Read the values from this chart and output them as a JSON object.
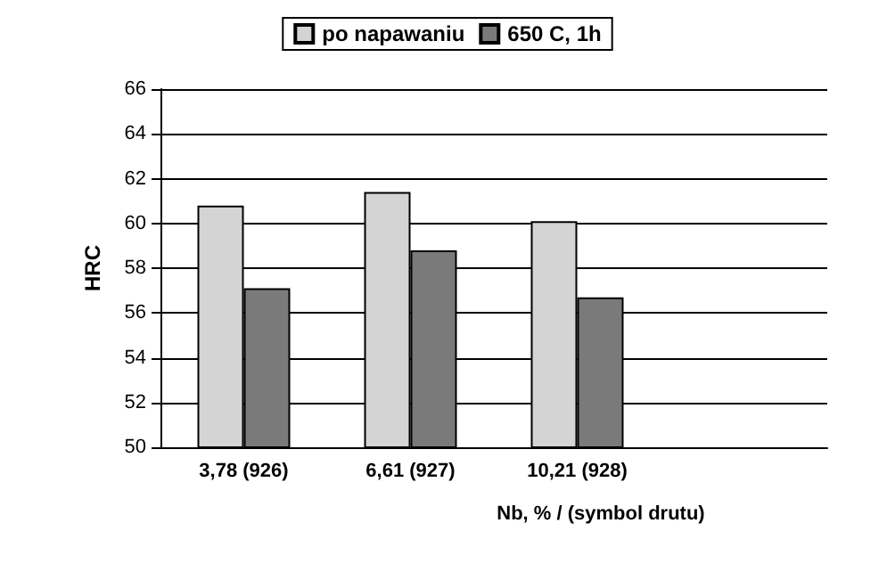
{
  "chart_data": {
    "type": "bar",
    "xlabel": "Nb, % / (symbol drutu)",
    "ylabel": "HRC",
    "categories": [
      "3,78 (926)",
      "6,61 (927)",
      "10,21 (928)",
      null
    ],
    "series": [
      {
        "name": "po napawaniu",
        "color": "#d4d4d4",
        "values": [
          60.8,
          61.4,
          60.1,
          null
        ]
      },
      {
        "name": "650 C, 1h",
        "color": "#7a7a7a",
        "values": [
          57.1,
          58.8,
          56.7,
          null
        ]
      }
    ],
    "ylim": [
      50,
      66
    ],
    "yticks": [
      50,
      52,
      54,
      56,
      58,
      60,
      62,
      64,
      66
    ],
    "grid": "y",
    "legend": "top"
  }
}
